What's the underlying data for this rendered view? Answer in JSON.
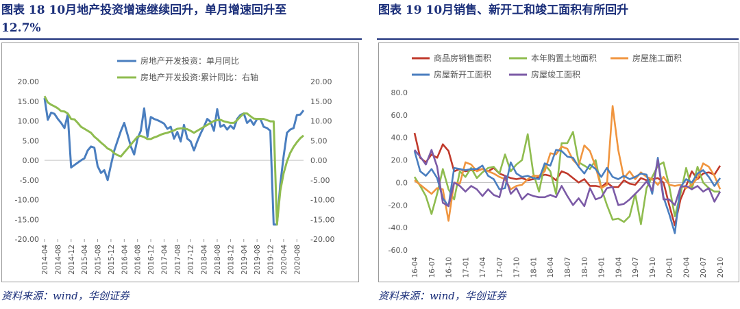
{
  "left": {
    "title_line1": "图表 18   10月地产投资增速继续回升，单月增速回升至",
    "title_line2": "12.7%",
    "source": "资料来源：wind，华创证券",
    "legend": [
      "房地产开发投资：单月同比",
      "房地产开发投资:累计同比：右轴"
    ],
    "colors": {
      "monthly": "#4a7ebf",
      "cumulative": "#8fbc4f"
    }
  },
  "right": {
    "title": "图表 19   10月销售、新开工和竣工面积有所回升",
    "source": "资料来源：wind，华创证券",
    "colors": {
      "sales": "#c0392b",
      "land": "#8fbc4f",
      "construction": "#f0953f",
      "newstart": "#4a7ebf",
      "completion": "#7b5aa6"
    }
  },
  "chart_data": [
    {
      "type": "line",
      "title": "10月地产投资增速继续回升，单月增速回升至12.7%",
      "x": [
        "2014-04",
        "2014-05",
        "2014-06",
        "2014-07",
        "2014-08",
        "2014-09",
        "2014-10",
        "2014-11",
        "2014-12",
        "2015-01",
        "2015-02",
        "2015-03",
        "2015-04",
        "2015-05",
        "2015-06",
        "2015-07",
        "2015-08",
        "2015-09",
        "2015-10",
        "2015-11",
        "2015-12",
        "2016-01",
        "2016-02",
        "2016-03",
        "2016-04",
        "2016-05",
        "2016-06",
        "2016-07",
        "2016-08",
        "2016-09",
        "2016-10",
        "2016-11",
        "2016-12",
        "2017-01",
        "2017-02",
        "2017-03",
        "2017-04",
        "2017-05",
        "2017-06",
        "2017-07",
        "2017-08",
        "2017-09",
        "2017-10",
        "2017-11",
        "2017-12",
        "2018-01",
        "2018-02",
        "2018-03",
        "2018-04",
        "2018-05",
        "2018-06",
        "2018-07",
        "2018-08",
        "2018-09",
        "2018-10",
        "2018-11",
        "2018-12",
        "2019-01",
        "2019-02",
        "2019-03",
        "2019-04",
        "2019-05",
        "2019-06",
        "2019-07",
        "2019-08",
        "2019-09",
        "2019-10",
        "2019-11",
        "2019-12",
        "2020-01",
        "2020-02",
        "2020-03",
        "2020-04",
        "2020-05",
        "2020-06",
        "2020-07",
        "2020-08",
        "2020-09",
        "2020-10"
      ],
      "xticks": [
        "2014-04",
        "2014-08",
        "2014-12",
        "2015-04",
        "2015-08",
        "2015-12",
        "2016-04",
        "2016-08",
        "2016-12",
        "2017-04",
        "2017-08",
        "2017-12",
        "2018-04",
        "2018-08",
        "2018-12",
        "2019-04",
        "2019-08",
        "2019-12",
        "2020-04",
        "2020-08"
      ],
      "ylim": [
        -20,
        20
      ],
      "yticks": [
        "20.00",
        "15.00",
        "10.00",
        "5.00",
        "0.00",
        "-5.00",
        "-10.00",
        "-15.00",
        "-20.00"
      ],
      "series": [
        {
          "name": "房地产开发投资：单月同比",
          "axis": "left",
          "values": [
            15.8,
            10.3,
            12.1,
            11.8,
            10.5,
            9.5,
            8.2,
            11.6,
            -1.8,
            -1.2,
            -0.6,
            0.0,
            0.5,
            2.5,
            3.5,
            3.2,
            -1.5,
            -3.2,
            -2.5,
            -5.0,
            -1.2,
            2.5,
            5.0,
            7.5,
            9.5,
            6.5,
            3.5,
            1.5,
            5.5,
            7.5,
            13.2,
            6.0,
            11.0,
            10.5,
            10.2,
            9.8,
            9.3,
            8.0,
            8.5,
            5.5,
            7.2,
            4.8,
            9.0,
            5.5,
            4.8,
            2.5,
            4.8,
            6.8,
            8.5,
            10.5,
            9.8,
            7.5,
            13.0,
            8.5,
            9.0,
            7.8,
            8.8,
            8.0,
            10.5,
            11.5,
            11.9,
            9.5,
            10.3,
            9.0,
            10.5,
            10.5,
            8.5,
            8.2,
            7.5,
            -16.3,
            -16.3,
            -6.0,
            1.0,
            7.0,
            7.8,
            8.2,
            11.5,
            11.6,
            12.7
          ]
        },
        {
          "name": "房地产开发投资:累计同比：右轴",
          "axis": "right",
          "values": [
            16.3,
            14.7,
            14.1,
            13.7,
            13.2,
            12.5,
            12.4,
            11.9,
            10.5,
            10.4,
            9.5,
            8.5,
            8.0,
            7.5,
            7.0,
            6.0,
            5.3,
            4.5,
            3.8,
            3.0,
            2.6,
            1.8,
            1.3,
            1.0,
            2.0,
            3.0,
            4.0,
            5.0,
            6.0,
            6.2,
            5.9,
            5.4,
            5.4,
            5.8,
            6.1,
            6.5,
            6.8,
            7.0,
            7.3,
            7.6,
            8.0,
            8.1,
            8.1,
            7.9,
            7.5,
            7.0,
            7.5,
            8.0,
            8.5,
            9.0,
            9.5,
            10.0,
            10.2,
            10.3,
            9.9,
            9.7,
            9.5,
            9.5,
            10.2,
            11.1,
            11.9,
            11.9,
            11.2,
            10.6,
            10.5,
            10.5,
            10.5,
            10.2,
            9.9,
            9.9,
            -16.3,
            -7.7,
            -3.3,
            -0.3,
            1.9,
            3.4,
            4.6,
            5.6,
            6.3
          ]
        }
      ]
    },
    {
      "type": "line",
      "title": "10月销售、新开工和竣工面积有所回升",
      "x": [
        "16-04",
        "16-05",
        "16-06",
        "16-07",
        "16-08",
        "16-09",
        "16-10",
        "16-11",
        "16-12",
        "17-01",
        "17-02",
        "17-03",
        "17-04",
        "17-05",
        "17-06",
        "17-07",
        "17-08",
        "17-09",
        "17-10",
        "17-11",
        "17-12",
        "18-01",
        "18-02",
        "18-03",
        "18-04",
        "18-05",
        "18-06",
        "18-07",
        "18-08",
        "18-09",
        "18-10",
        "18-11",
        "18-12",
        "19-01",
        "19-02",
        "19-03",
        "19-04",
        "19-05",
        "19-06",
        "19-07",
        "19-08",
        "19-09",
        "19-10",
        "19-11",
        "19-12",
        "20-01",
        "20-02",
        "20-03",
        "20-04",
        "20-05",
        "20-06",
        "20-07",
        "20-08",
        "20-09",
        "20-10"
      ],
      "xticks": [
        "16-04",
        "16-07",
        "16-10",
        "17-01",
        "17-04",
        "17-07",
        "17-10",
        "18-01",
        "18-04",
        "18-07",
        "18-10",
        "19-01",
        "19-04",
        "19-07",
        "19-10",
        "20-01",
        "20-04",
        "20-07",
        "20-10"
      ],
      "ylim": [
        -60,
        80
      ],
      "yticks": [
        "80.0",
        "60.0",
        "40.0",
        "20.0",
        "0.0",
        "-20.0",
        "-40.0",
        "-60.0"
      ],
      "series": [
        {
          "name": "商品房销售面积",
          "values": [
            44,
            22,
            18,
            25,
            22,
            34,
            28,
            10,
            12,
            10,
            11,
            11,
            12,
            10,
            13,
            8,
            6,
            4,
            3,
            4,
            2,
            3,
            5,
            7,
            6,
            2,
            10,
            8,
            4,
            0,
            3,
            -3,
            -3,
            -4,
            0,
            -4,
            -4,
            2,
            -1,
            -2,
            4,
            2,
            3,
            4,
            0,
            -20,
            -38,
            -15,
            -3,
            10,
            3,
            8,
            9,
            7,
            15
          ]
        },
        {
          "name": "本年购置土地面积",
          "values": [
            5,
            -3,
            -12,
            -28,
            -10,
            12,
            -6,
            -15,
            10,
            5,
            13,
            4,
            9,
            13,
            14,
            8,
            25,
            10,
            16,
            20,
            43,
            8,
            -8,
            16,
            10,
            -10,
            35,
            35,
            45,
            18,
            15,
            12,
            20,
            -5,
            -20,
            -33,
            -32,
            -35,
            -30,
            -10,
            -37,
            -5,
            5,
            15,
            18,
            -3,
            -30,
            -10,
            13,
            -6,
            14,
            0,
            -5,
            -8,
            -8
          ]
        },
        {
          "name": "房屋施工面积",
          "values": [
            2,
            -2,
            -6,
            -10,
            -5,
            -6,
            -34,
            0,
            -1,
            18,
            16,
            10,
            12,
            10,
            8,
            5,
            3,
            -6,
            -3,
            -2,
            3,
            6,
            6,
            10,
            26,
            25,
            32,
            30,
            20,
            15,
            33,
            28,
            14,
            -5,
            -2,
            68,
            29,
            4,
            10,
            3,
            9,
            5,
            3,
            -2,
            5,
            -2,
            -3,
            -2,
            -5,
            -2,
            4,
            17,
            14,
            6,
            -6
          ]
        },
        {
          "name": "房屋新开工面积",
          "values": [
            28,
            10,
            6,
            12,
            4,
            -14,
            -21,
            13,
            12,
            11,
            12,
            12,
            15,
            6,
            3,
            -6,
            -5,
            18,
            8,
            5,
            6,
            4,
            3,
            17,
            15,
            29,
            28,
            23,
            22,
            14,
            8,
            16,
            12,
            5,
            13,
            5,
            3,
            6,
            3,
            5,
            8,
            7,
            -10,
            22,
            -13,
            -28,
            -45,
            -4,
            3,
            0,
            8,
            11,
            5,
            -3,
            4
          ]
        },
        {
          "name": "房屋竣工面积",
          "values": [
            29,
            23,
            16,
            29,
            14,
            -18,
            -21,
            0,
            -3,
            -8,
            -3,
            -6,
            -12,
            -6,
            -11,
            -13,
            6,
            -10,
            -5,
            -15,
            -10,
            -12,
            -13,
            -13,
            -11,
            -13,
            -3,
            -12,
            -20,
            -14,
            -21,
            -5,
            -15,
            -13,
            -5,
            -4,
            -20,
            -19,
            -15,
            -10,
            -5,
            1,
            -7,
            20,
            -15,
            -15,
            -20,
            -4,
            -3,
            -6,
            -3,
            -8,
            -5,
            -17,
            -8
          ]
        }
      ]
    }
  ]
}
